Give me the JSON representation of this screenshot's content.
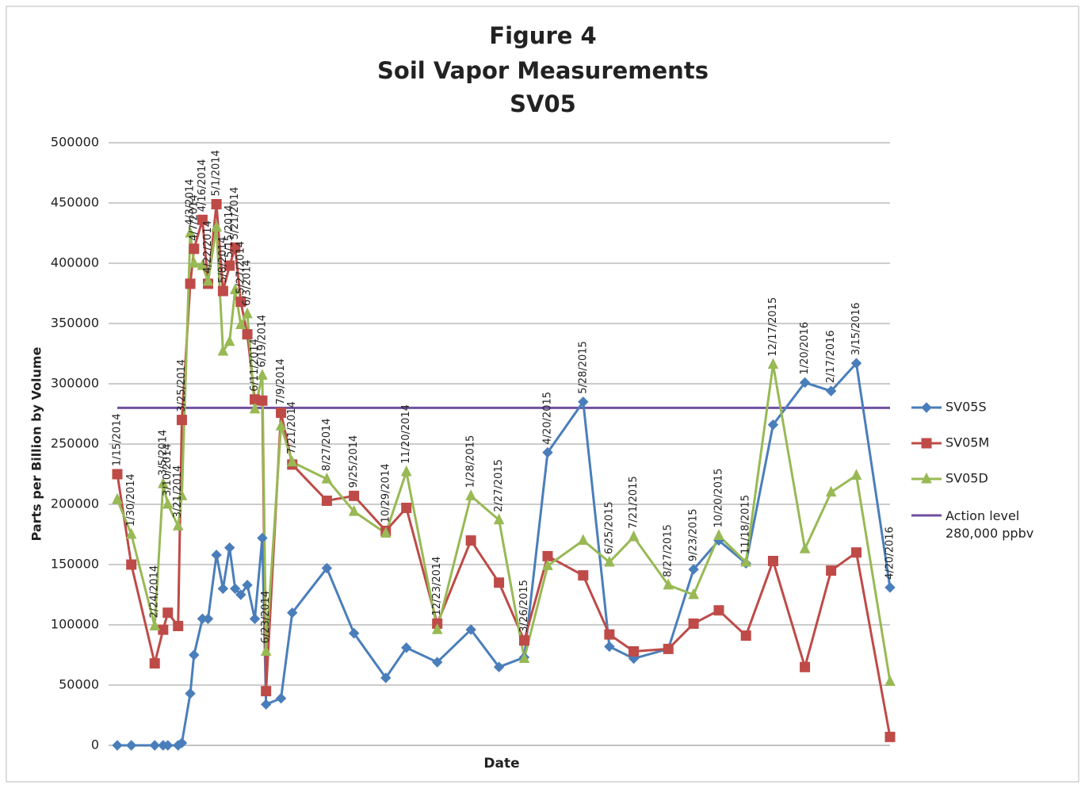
{
  "chart_data": {
    "type": "line",
    "title": [
      "Figure 4",
      "Soil Vapor Measurements",
      "SV05"
    ],
    "y_label": "Parts per Billion by Volume",
    "x_label": "Date",
    "x": [
      "1/15/2014",
      "1/30/2014",
      "2/24/2014",
      "3/5/2014",
      "3/10/2014",
      "3/21/2014",
      "3/25/2014",
      "4/3/2014",
      "4/7/2014",
      "4/16/2014",
      "4/22/2014",
      "5/1/2014",
      "5/8/2014",
      "5/15/2014",
      "5/21/2014",
      "5/27/2014",
      "6/3/2014",
      "6/11/2014",
      "6/19/2014",
      "6/23/2014",
      "7/9/2014",
      "7/21/2014",
      "8/27/2014",
      "9/25/2014",
      "10/29/2014",
      "11/20/2014",
      "12/23/2014",
      "1/28/2015",
      "2/27/2015",
      "3/26/2015",
      "4/20/2015",
      "5/28/2015",
      "6/25/2015",
      "7/21/2015",
      "8/27/2015",
      "9/23/2015",
      "10/20/2015",
      "11/18/2015",
      "12/17/2015",
      "1/20/2016",
      "2/17/2016",
      "3/15/2016",
      "4/20/2016"
    ],
    "series": [
      {
        "name": "SV05S",
        "color": "#4a7ebb",
        "marker": "diamond",
        "values": [
          0,
          0,
          0,
          0,
          0,
          0,
          2000,
          43000,
          75000,
          105000,
          105000,
          158000,
          130000,
          164000,
          130000,
          125000,
          133000,
          105000,
          172000,
          34000,
          39000,
          110000,
          147000,
          93000,
          56000,
          81000,
          69000,
          96000,
          65000,
          73000,
          243000,
          285000,
          82000,
          72000,
          80000,
          146000,
          170000,
          151000,
          266000,
          301000,
          294000,
          317000,
          131000
        ]
      },
      {
        "name": "SV05M",
        "color": "#be4b48",
        "marker": "square",
        "values": [
          225000,
          150000,
          68000,
          96000,
          110000,
          99000,
          270000,
          383000,
          412000,
          436000,
          383000,
          449000,
          377000,
          398000,
          413000,
          368000,
          341000,
          287000,
          286000,
          45000,
          276000,
          233000,
          203000,
          207000,
          178000,
          197000,
          101000,
          170000,
          135000,
          87000,
          157000,
          141000,
          92000,
          78000,
          80000,
          101000,
          112000,
          91000,
          153000,
          65000,
          145000,
          160000,
          7000
        ]
      },
      {
        "name": "SV05D",
        "color": "#98b954",
        "marker": "triangle",
        "values": [
          204000,
          175000,
          99000,
          217000,
          200000,
          182000,
          207000,
          425000,
          400000,
          398000,
          385000,
          430000,
          327000,
          335000,
          378000,
          349000,
          358000,
          279000,
          307000,
          78000,
          265000,
          235000,
          221000,
          194000,
          176000,
          227000,
          96000,
          207000,
          187000,
          72000,
          149000,
          170000,
          152000,
          173000,
          133000,
          125000,
          174000,
          152000,
          316000,
          163000,
          210000,
          224000,
          53000
        ]
      }
    ],
    "action_level": {
      "name": "Action level 280,000 ppbv",
      "value": 280000,
      "color": "#7050a0"
    },
    "ylim": [
      0,
      500000
    ],
    "yticks": [
      0,
      50000,
      100000,
      150000,
      200000,
      250000,
      300000,
      350000,
      400000,
      450000,
      500000
    ],
    "grid": true,
    "legend": "right"
  }
}
